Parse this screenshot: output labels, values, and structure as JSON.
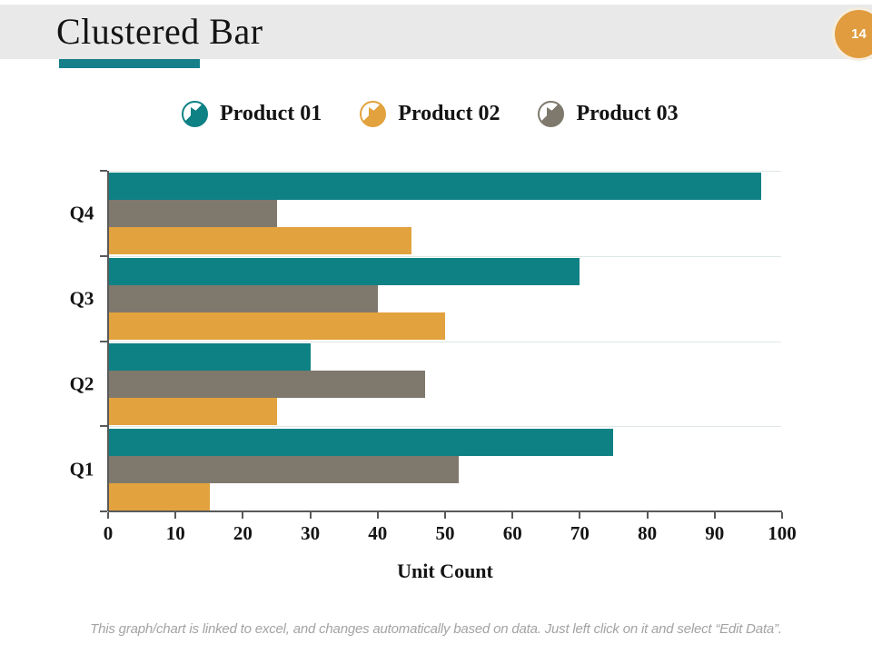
{
  "slide": {
    "title": "Clustered Bar",
    "page_number": "14",
    "footer_note": "This graph/chart is linked to excel, and changes automatically based on data. Just left click on it and select “Edit Data”."
  },
  "colors": {
    "header_band": "#E9E9E9",
    "accent": "#15808A",
    "badge": "#E09C3E",
    "axis": "#595959",
    "grid": "#DFE6E6",
    "footer": "#A3A3A3",
    "teal": "#0E8185",
    "orange": "#E2A23D",
    "gray": "#7E796C"
  },
  "legend": [
    {
      "label": "Product 01",
      "color": "#0E8185",
      "icon": "play-circle-icon"
    },
    {
      "label": "Product 02",
      "color": "#E2A23D",
      "icon": "play-circle-icon"
    },
    {
      "label": "Product 03",
      "color": "#7E796C",
      "icon": "play-circle-icon"
    }
  ],
  "chart_data": {
    "type": "bar",
    "orientation": "horizontal",
    "title": "Clustered Bar",
    "categories": [
      "Q4",
      "Q3",
      "Q2",
      "Q1"
    ],
    "series": [
      {
        "name": "Product 01",
        "color": "#0E8185",
        "values": [
          97,
          70,
          30,
          75
        ]
      },
      {
        "name": "Product 02",
        "color": "#E2A23D",
        "values": [
          45,
          50,
          25,
          15
        ]
      },
      {
        "name": "Product 03",
        "color": "#7E796C",
        "values": [
          25,
          40,
          47,
          52
        ]
      }
    ],
    "cluster_bar_order_top_to_bottom": [
      "Product 01",
      "Product 03",
      "Product 02"
    ],
    "xlabel": "Unit Count",
    "ylabel": "",
    "x_ticks": [
      0,
      10,
      20,
      30,
      40,
      50,
      60,
      70,
      80,
      90,
      100
    ],
    "xlim": [
      0,
      100
    ],
    "grid": "category-boundary-lines",
    "legend_position": "top"
  }
}
